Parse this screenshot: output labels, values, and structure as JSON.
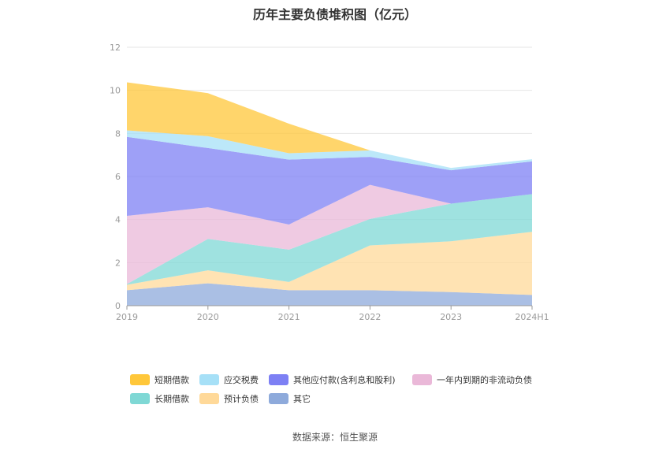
{
  "chart_data": {
    "type": "area",
    "title": "历年主要负债堆积图（亿元）",
    "categories": [
      "2019",
      "2020",
      "2021",
      "2022",
      "2023",
      "2024H1"
    ],
    "stacked": true,
    "ylim": [
      0,
      12
    ],
    "yticks": [
      "0",
      "2",
      "4",
      "6",
      "8",
      "10",
      "12"
    ],
    "grid": true,
    "legend_position": "bottom",
    "series": [
      {
        "name": "其它",
        "color": "#8eaadb",
        "values": [
          0.72,
          1.04,
          0.72,
          0.72,
          0.63,
          0.5
        ]
      },
      {
        "name": "预计负债",
        "color": "#ffd999",
        "values": [
          0.25,
          0.6,
          0.38,
          2.08,
          2.36,
          2.93
        ]
      },
      {
        "name": "长期借款",
        "color": "#7fd8d5",
        "values": [
          0.03,
          1.46,
          1.5,
          1.23,
          1.75,
          1.75
        ]
      },
      {
        "name": "一年内到期的非流动负债",
        "color": "#eab8d8",
        "values": [
          3.17,
          1.47,
          1.17,
          1.58,
          0.0,
          0.0
        ]
      },
      {
        "name": "其他应付款(含利息和股利)",
        "color": "#7d80f4",
        "values": [
          3.67,
          2.75,
          3.01,
          1.3,
          1.55,
          1.52
        ]
      },
      {
        "name": "应交税费",
        "color": "#a6e0f7",
        "values": [
          0.3,
          0.55,
          0.3,
          0.3,
          0.11,
          0.1
        ]
      },
      {
        "name": "短期借款",
        "color": "#ffc73a",
        "values": [
          2.23,
          2.0,
          1.37,
          0.0,
          0.0,
          0.0
        ]
      }
    ]
  },
  "legend": {
    "row1": [
      "短期借款",
      "应交税费",
      "其他应付款(含利息和股利)",
      "一年内到期的非流动负债"
    ],
    "row2": [
      "长期借款",
      "预计负债",
      "其它"
    ]
  },
  "source": "数据来源：恒生聚源"
}
